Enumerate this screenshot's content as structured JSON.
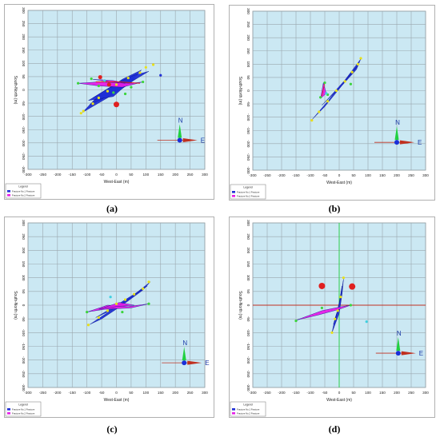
{
  "figure": {
    "captions": [
      "(a)",
      "(b)",
      "(c)",
      "(d)"
    ],
    "colors": {
      "plot_bg": "#cbe8f3",
      "grid": "#9aa6ad",
      "fracture_1": "#1f2fd6",
      "fracture_2": "#e61ee6",
      "event_green": "#3cd43c",
      "event_yellow": "#e8e01a",
      "event_red": "#e02020",
      "event_cyan": "#40d0e0",
      "axis_red": "#c03020",
      "axis_green": "#20d040"
    },
    "x_ticks": [
      "-300",
      "-250",
      "-200",
      "-150",
      "-100",
      "-50",
      "0",
      "50",
      "100",
      "150",
      "200",
      "250",
      "300"
    ],
    "y_ticks": [
      "300",
      "250",
      "200",
      "150",
      "100",
      "50",
      "0",
      "-50",
      "-100",
      "-150",
      "-200",
      "-250",
      "-300"
    ],
    "xlabel": "West-East (m)",
    "ylabel": "South-North (m)",
    "north_label": "N",
    "east_label": "E",
    "legend_title": "Legend",
    "legend_items": [
      "Fracture No.1 Fracture",
      "Fracture No.2 Fracture"
    ]
  },
  "panels": [
    {
      "id": "a",
      "compass": [
        215,
        -190
      ],
      "show_legend": true,
      "fractures": [
        {
          "color": "fracture_1",
          "points": [
            [
              -115,
              -85
            ],
            [
              -60,
              -20
            ],
            [
              20,
              40
            ],
            [
              85,
              75
            ],
            [
              40,
              20
            ],
            [
              -30,
              -30
            ]
          ]
        },
        {
          "color": "fracture_1",
          "points": [
            [
              -90,
              -55
            ],
            [
              -40,
              -10
            ],
            [
              30,
              30
            ],
            [
              70,
              45
            ],
            [
              20,
              5
            ],
            [
              -50,
              -35
            ]
          ]
        },
        {
          "color": "fracture_1",
          "points": [
            [
              -80,
              -30
            ],
            [
              0,
              25
            ],
            [
              60,
              55
            ],
            [
              110,
              70
            ],
            [
              50,
              30
            ],
            [
              -20,
              -10
            ]
          ]
        },
        {
          "color": "fracture_1",
          "points": [
            [
              -95,
              -40
            ],
            [
              -20,
              10
            ],
            [
              40,
              25
            ],
            [
              -10,
              -25
            ]
          ]
        },
        {
          "color": "fracture_2",
          "points": [
            [
              -130,
              25
            ],
            [
              -60,
              30
            ],
            [
              50,
              25
            ],
            [
              90,
              30
            ],
            [
              20,
              10
            ],
            [
              -60,
              15
            ]
          ]
        },
        {
          "color": "fracture_2",
          "points": [
            [
              -80,
              40
            ],
            [
              -20,
              30
            ],
            [
              30,
              25
            ],
            [
              -10,
              35
            ]
          ]
        }
      ],
      "points": [
        {
          "x": -120,
          "y": -88,
          "color": "event_yellow",
          "r": 1.6
        },
        {
          "x": -112,
          "y": -80,
          "color": "event_yellow",
          "r": 1.6
        },
        {
          "x": -80,
          "y": -52,
          "color": "event_yellow",
          "r": 1.6
        },
        {
          "x": -60,
          "y": -30,
          "color": "event_yellow",
          "r": 1.6
        },
        {
          "x": -30,
          "y": -5,
          "color": "event_yellow",
          "r": 1.6
        },
        {
          "x": 0,
          "y": 20,
          "color": "event_yellow",
          "r": 1.6
        },
        {
          "x": 40,
          "y": 45,
          "color": "event_yellow",
          "r": 1.6
        },
        {
          "x": 80,
          "y": 65,
          "color": "event_yellow",
          "r": 1.6
        },
        {
          "x": 100,
          "y": 85,
          "color": "event_yellow",
          "r": 1.6
        },
        {
          "x": 125,
          "y": 95,
          "color": "event_yellow",
          "r": 1.6
        },
        {
          "x": -130,
          "y": 25,
          "color": "event_green",
          "r": 1.6
        },
        {
          "x": -85,
          "y": 42,
          "color": "event_green",
          "r": 1.6
        },
        {
          "x": -10,
          "y": -10,
          "color": "event_green",
          "r": 1.6
        },
        {
          "x": 30,
          "y": -15,
          "color": "event_green",
          "r": 1.6
        },
        {
          "x": 50,
          "y": 10,
          "color": "event_green",
          "r": 1.6
        },
        {
          "x": 90,
          "y": 30,
          "color": "event_green",
          "r": 1.6
        },
        {
          "x": -60,
          "y": 15,
          "color": "event_green",
          "r": 1.6
        },
        {
          "x": -55,
          "y": 48,
          "color": "event_red",
          "r": 2.5
        },
        {
          "x": -25,
          "y": 20,
          "color": "event_red",
          "r": 2.5
        },
        {
          "x": 0,
          "y": -55,
          "color": "event_red",
          "r": 3.5
        },
        {
          "x": -40,
          "y": 35,
          "color": "event_cyan",
          "r": 1.6
        },
        {
          "x": 150,
          "y": 55,
          "color": "fracture_1",
          "r": 1.6
        }
      ],
      "lines": [
        {
          "color": "event_red",
          "width": 1,
          "points": [
            [
              -70,
              30
            ],
            [
              10,
              30
            ],
            [
              80,
              25
            ]
          ]
        }
      ]
    },
    {
      "id": "b",
      "compass": [
        200,
        -195
      ],
      "show_legend": true,
      "fractures": [
        {
          "color": "fracture_1",
          "points": [
            [
              -95,
              -110
            ],
            [
              -40,
              -40
            ],
            [
              20,
              40
            ],
            [
              75,
              120
            ],
            [
              60,
              80
            ],
            [
              10,
              20
            ],
            [
              -50,
              -60
            ]
          ]
        },
        {
          "color": "fracture_1",
          "points": [
            [
              -60,
              -55
            ],
            [
              10,
              20
            ],
            [
              65,
              95
            ],
            [
              20,
              40
            ],
            [
              -30,
              -20
            ]
          ]
        },
        {
          "color": "fracture_2",
          "points": [
            [
              -65,
              -30
            ],
            [
              -55,
              30
            ],
            [
              -45,
              -10
            ]
          ]
        }
      ],
      "points": [
        {
          "x": -95,
          "y": -112,
          "color": "event_yellow",
          "r": 1.6
        },
        {
          "x": -70,
          "y": -80,
          "color": "event_yellow",
          "r": 1.6
        },
        {
          "x": -40,
          "y": -40,
          "color": "event_yellow",
          "r": 1.6
        },
        {
          "x": -10,
          "y": 0,
          "color": "event_yellow",
          "r": 1.6
        },
        {
          "x": 20,
          "y": 35,
          "color": "event_yellow",
          "r": 1.6
        },
        {
          "x": 45,
          "y": 70,
          "color": "event_yellow",
          "r": 1.6
        },
        {
          "x": 65,
          "y": 100,
          "color": "event_yellow",
          "r": 1.6
        },
        {
          "x": 75,
          "y": 122,
          "color": "event_yellow",
          "r": 1.6
        },
        {
          "x": -50,
          "y": 30,
          "color": "event_green",
          "r": 1.6
        },
        {
          "x": -65,
          "y": -25,
          "color": "event_green",
          "r": 1.6
        },
        {
          "x": -40,
          "y": -15,
          "color": "event_green",
          "r": 1.6
        },
        {
          "x": -45,
          "y": -10,
          "color": "event_cyan",
          "r": 1.6
        },
        {
          "x": 40,
          "y": 25,
          "color": "event_green",
          "r": 1.6
        }
      ],
      "lines": [
        {
          "color": "event_red",
          "width": 0.8,
          "points": [
            [
              -60,
              -20
            ],
            [
              -50,
              30
            ]
          ]
        }
      ]
    },
    {
      "id": "c",
      "compass": [
        230,
        -210
      ],
      "show_legend": true,
      "fractures": [
        {
          "color": "fracture_1",
          "points": [
            [
              -90,
              -70
            ],
            [
              -20,
              -20
            ],
            [
              50,
              30
            ],
            [
              115,
              85
            ],
            [
              90,
              55
            ],
            [
              20,
              0
            ],
            [
              -50,
              -50
            ]
          ]
        },
        {
          "color": "fracture_1",
          "points": [
            [
              -70,
              -45
            ],
            [
              0,
              0
            ],
            [
              60,
              40
            ],
            [
              105,
              70
            ],
            [
              40,
              20
            ],
            [
              -30,
              -25
            ]
          ]
        },
        {
          "color": "fracture_2",
          "points": [
            [
              -100,
              -25
            ],
            [
              -30,
              0
            ],
            [
              40,
              -5
            ],
            [
              110,
              5
            ],
            [
              50,
              -10
            ],
            [
              -40,
              -15
            ]
          ]
        },
        {
          "color": "fracture_2",
          "points": [
            [
              -60,
              -15
            ],
            [
              10,
              10
            ],
            [
              60,
              0
            ],
            [
              0,
              -5
            ]
          ]
        }
      ],
      "points": [
        {
          "x": -95,
          "y": -72,
          "color": "event_yellow",
          "r": 1.6
        },
        {
          "x": -60,
          "y": -45,
          "color": "event_yellow",
          "r": 1.6
        },
        {
          "x": -30,
          "y": -20,
          "color": "event_yellow",
          "r": 1.6
        },
        {
          "x": 0,
          "y": 5,
          "color": "event_yellow",
          "r": 1.6
        },
        {
          "x": 30,
          "y": 20,
          "color": "event_yellow",
          "r": 1.6
        },
        {
          "x": 60,
          "y": 40,
          "color": "event_yellow",
          "r": 1.6
        },
        {
          "x": 90,
          "y": 60,
          "color": "event_yellow",
          "r": 1.6
        },
        {
          "x": 110,
          "y": 85,
          "color": "event_yellow",
          "r": 1.6
        },
        {
          "x": -100,
          "y": -25,
          "color": "event_green",
          "r": 1.6
        },
        {
          "x": 110,
          "y": 5,
          "color": "event_green",
          "r": 1.6
        },
        {
          "x": -20,
          "y": 30,
          "color": "event_cyan",
          "r": 1.6
        },
        {
          "x": 20,
          "y": -25,
          "color": "event_green",
          "r": 1.6
        }
      ],
      "lines": []
    },
    {
      "id": "d",
      "compass": [
        205,
        -175
      ],
      "show_legend": true,
      "axis_lines": true,
      "fractures": [
        {
          "color": "fracture_1",
          "points": [
            [
              -25,
              -100
            ],
            [
              -15,
              -50
            ],
            [
              0,
              0
            ],
            [
              15,
              95
            ],
            [
              10,
              40
            ],
            [
              0,
              -30
            ]
          ]
        },
        {
          "color": "fracture_1",
          "points": [
            [
              -20,
              -70
            ],
            [
              -5,
              -20
            ],
            [
              5,
              30
            ],
            [
              10,
              70
            ],
            [
              0,
              10
            ],
            [
              -10,
              -40
            ]
          ]
        },
        {
          "color": "fracture_2",
          "points": [
            [
              -150,
              -55
            ],
            [
              -60,
              -20
            ],
            [
              10,
              -5
            ],
            [
              40,
              0
            ],
            [
              0,
              -15
            ],
            [
              -70,
              -35
            ]
          ]
        }
      ],
      "points": [
        {
          "x": -25,
          "y": -100,
          "color": "event_yellow",
          "r": 1.6
        },
        {
          "x": -15,
          "y": -50,
          "color": "event_yellow",
          "r": 1.6
        },
        {
          "x": -5,
          "y": -20,
          "color": "event_yellow",
          "r": 1.6
        },
        {
          "x": 5,
          "y": 30,
          "color": "event_yellow",
          "r": 1.6
        },
        {
          "x": 15,
          "y": 100,
          "color": "event_yellow",
          "r": 1.6
        },
        {
          "x": -150,
          "y": -57,
          "color": "event_green",
          "r": 1.6
        },
        {
          "x": -60,
          "y": -10,
          "color": "event_green",
          "r": 1.6
        },
        {
          "x": 40,
          "y": 0,
          "color": "event_green",
          "r": 1.6
        },
        {
          "x": -60,
          "y": 70,
          "color": "event_red",
          "r": 4
        },
        {
          "x": 45,
          "y": 68,
          "color": "event_red",
          "r": 4
        },
        {
          "x": 95,
          "y": -60,
          "color": "event_cyan",
          "r": 1.6
        }
      ],
      "lines": []
    }
  ]
}
